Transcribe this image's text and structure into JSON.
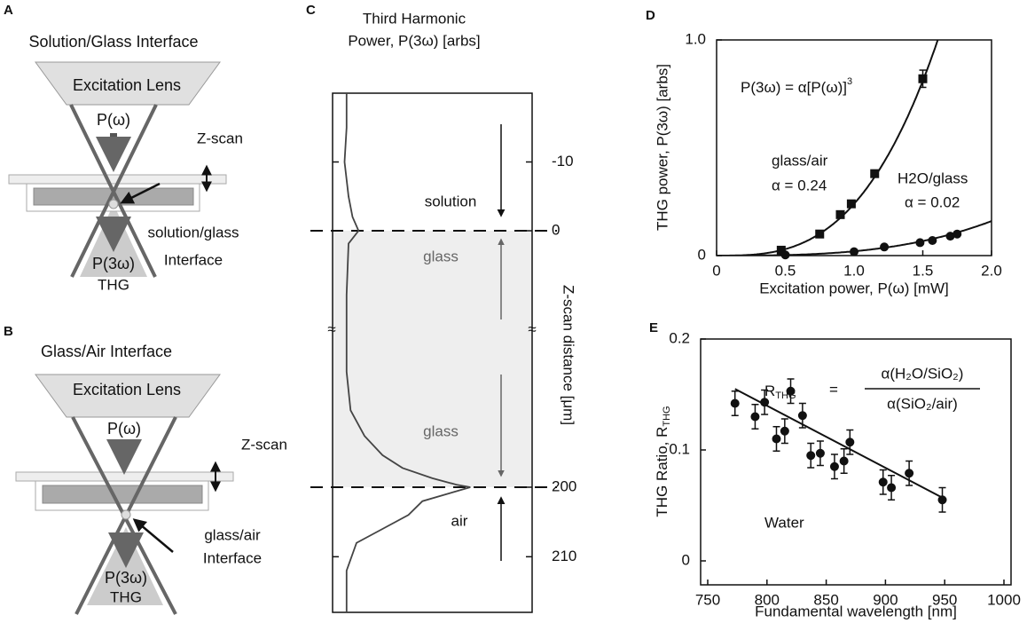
{
  "panels": {
    "a": {
      "letter": "A",
      "title": "Solution/Glass Interface",
      "lens": "Excitation Lens",
      "input": "P(ω)",
      "scan": "Z-scan",
      "interface": [
        "solution/glass",
        "Interface"
      ],
      "output": "P(3ω)",
      "signal": "THG"
    },
    "b": {
      "letter": "B",
      "title": "Glass/Air Interface",
      "lens": "Excitation Lens",
      "input": "P(ω)",
      "scan": "Z-scan",
      "interface": [
        "glass/air",
        "Interface"
      ],
      "output": "P(3ω)",
      "signal": "THG"
    }
  },
  "chart_data": [
    {
      "type": "profile",
      "letter": "C",
      "title": [
        "Third Harmonic",
        "Power, P(3ω) [arbs]"
      ],
      "ylabel": "Z-scan distance [μm]",
      "y_pieces": [
        [
          -20,
          0
        ],
        [
          0,
          200
        ],
        [
          200,
          218
        ]
      ],
      "xlim": [
        0,
        1
      ],
      "yticks": [
        -10,
        0,
        200,
        210
      ],
      "regions": [
        "solution",
        "glass",
        "glass",
        "air"
      ],
      "depth": [
        -20,
        -15,
        -10,
        -5,
        -2,
        0,
        10,
        50,
        110,
        140,
        160,
        175,
        185,
        193,
        198,
        200,
        202,
        204,
        206,
        208,
        212,
        216,
        218
      ],
      "values": [
        0.07,
        0.07,
        0.06,
        0.08,
        0.1,
        0.13,
        0.08,
        0.07,
        0.07,
        0.09,
        0.16,
        0.25,
        0.35,
        0.5,
        0.62,
        0.69,
        0.45,
        0.38,
        0.25,
        0.12,
        0.07,
        0.07,
        0.07
      ],
      "color": "#444"
    },
    {
      "type": "scatter",
      "letter": "D",
      "xlabel": "Excitation power, P(ω) [mW]",
      "ylabel": "THG power, P(3ω) [arbs]",
      "xlim": [
        0,
        2
      ],
      "ylim": [
        0,
        1
      ],
      "xticks": [
        0,
        0.5,
        {
          "value": 1,
          "label": "1.0"
        },
        1.5,
        {
          "value": 2,
          "label": "2.0"
        }
      ],
      "yticks": [
        0,
        {
          "value": 1,
          "label": "1.0"
        }
      ],
      "equation": "P(3ω) = α[P(ω)]",
      "fit_exponent": 3,
      "series": [
        {
          "name": "glass/air",
          "marker": "square",
          "color": "#111",
          "alpha": 0.24,
          "alpha_label": "α = 0.24",
          "x": [
            0.47,
            0.75,
            0.9,
            0.98,
            1.15,
            1.5
          ],
          "values": [
            0.025,
            0.1,
            0.19,
            0.24,
            0.38,
            0.82
          ],
          "errors": [
            null,
            null,
            null,
            null,
            null,
            0.04
          ]
        },
        {
          "name": "H2O/glass",
          "marker": "circle",
          "color": "#111",
          "alpha": 0.02,
          "alpha_label": "α = 0.02",
          "x": [
            0.5,
            1.0,
            1.22,
            1.48,
            1.57,
            1.7,
            1.75
          ],
          "values": [
            0.003,
            0.018,
            0.04,
            0.06,
            0.07,
            0.09,
            0.1
          ],
          "errors": [
            null,
            null,
            null,
            null,
            null,
            null,
            null
          ]
        }
      ]
    },
    {
      "type": "scatter",
      "letter": "E",
      "xlabel": "Fundamental wavelength [nm]",
      "ylabel": "THG Ratio, R",
      "ylabel_sub": "THG",
      "xlim": [
        750,
        1000
      ],
      "ylim": [
        -0.02,
        0.2
      ],
      "xticks": [
        750,
        800,
        850,
        900,
        950,
        1000
      ],
      "yticks": [
        0,
        0.1,
        0.2
      ],
      "annotation": "Water",
      "formula": {
        "lhs": "R",
        "lhs_sub": "THG",
        "equals": "=",
        "numerator": "α(H₂O/SiO₂)",
        "denominator": "α(SiO₂/air)"
      },
      "fit": {
        "x": [
          773,
          948
        ],
        "values": [
          0.155,
          0.057
        ]
      },
      "series": [
        {
          "marker": "circle",
          "color": "#111",
          "x": [
            773,
            790,
            798,
            808,
            815,
            820,
            830,
            837,
            845,
            857,
            865,
            870,
            898,
            905,
            920,
            948
          ],
          "values": [
            0.142,
            0.13,
            0.143,
            0.11,
            0.117,
            0.153,
            0.131,
            0.095,
            0.097,
            0.085,
            0.09,
            0.107,
            0.071,
            0.066,
            0.079,
            0.055
          ],
          "errors": [
            0.011,
            0.011,
            0.011,
            0.011,
            0.011,
            0.011,
            0.011,
            0.011,
            0.011,
            0.011,
            0.011,
            0.011,
            0.011,
            0.011,
            0.011,
            0.011
          ]
        }
      ]
    }
  ]
}
